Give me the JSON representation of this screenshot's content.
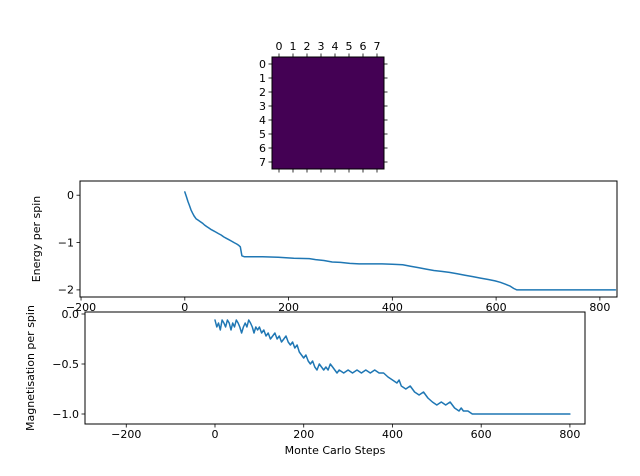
{
  "figure": {
    "background": "#ffffff",
    "line_color": "#1f77b4",
    "spine_color": "#000000",
    "heatmap_cell_color": "#440154"
  },
  "chart_data": [
    {
      "type": "heatmap",
      "name": "lattice",
      "title": "",
      "rows": 8,
      "cols": 8,
      "colormap": "viridis",
      "cell_color": "#440154",
      "x_tick_labels": [
        "0",
        "1",
        "2",
        "3",
        "4",
        "5",
        "6",
        "7"
      ],
      "y_tick_labels": [
        "0",
        "1",
        "2",
        "3",
        "4",
        "5",
        "6",
        "7"
      ],
      "values": [
        [
          -1,
          -1,
          -1,
          -1,
          -1,
          -1,
          -1,
          -1
        ],
        [
          -1,
          -1,
          -1,
          -1,
          -1,
          -1,
          -1,
          -1
        ],
        [
          -1,
          -1,
          -1,
          -1,
          -1,
          -1,
          -1,
          -1
        ],
        [
          -1,
          -1,
          -1,
          -1,
          -1,
          -1,
          -1,
          -1
        ],
        [
          -1,
          -1,
          -1,
          -1,
          -1,
          -1,
          -1,
          -1
        ],
        [
          -1,
          -1,
          -1,
          -1,
          -1,
          -1,
          -1,
          -1
        ],
        [
          -1,
          -1,
          -1,
          -1,
          -1,
          -1,
          -1,
          -1
        ],
        [
          -1,
          -1,
          -1,
          -1,
          -1,
          -1,
          -1,
          -1
        ]
      ]
    },
    {
      "type": "line",
      "name": "energy",
      "title": "",
      "xlabel": "",
      "ylabel": "Energy per spin",
      "grid": false,
      "xlim": [
        -202,
        833
      ],
      "ylim": [
        -2.15,
        0.3
      ],
      "x_ticks": [
        -200,
        0,
        200,
        400,
        600,
        800
      ],
      "x_tick_labels": [
        "−200",
        "0",
        "200",
        "400",
        "600",
        "800"
      ],
      "y_ticks": [
        0,
        -1,
        -2
      ],
      "y_tick_labels": [
        "0",
        "−1",
        "−2"
      ],
      "series": [
        {
          "name": "energy per spin",
          "color": "#1f77b4",
          "points": [
            [
              0,
              0.07
            ],
            [
              3,
              -0.03
            ],
            [
              6,
              -0.13
            ],
            [
              9,
              -0.22
            ],
            [
              12,
              -0.31
            ],
            [
              15,
              -0.38
            ],
            [
              18,
              -0.44
            ],
            [
              22,
              -0.5
            ],
            [
              26,
              -0.53
            ],
            [
              30,
              -0.56
            ],
            [
              34,
              -0.59
            ],
            [
              38,
              -0.63
            ],
            [
              42,
              -0.66
            ],
            [
              46,
              -0.69
            ],
            [
              50,
              -0.72
            ],
            [
              55,
              -0.75
            ],
            [
              60,
              -0.78
            ],
            [
              65,
              -0.81
            ],
            [
              70,
              -0.84
            ],
            [
              75,
              -0.88
            ],
            [
              80,
              -0.91
            ],
            [
              85,
              -0.94
            ],
            [
              90,
              -0.97
            ],
            [
              95,
              -1.0
            ],
            [
              100,
              -1.03
            ],
            [
              104,
              -1.06
            ],
            [
              107,
              -1.09
            ],
            [
              110,
              -1.28
            ],
            [
              115,
              -1.3
            ],
            [
              150,
              -1.3
            ],
            [
              180,
              -1.31
            ],
            [
              210,
              -1.33
            ],
            [
              240,
              -1.34
            ],
            [
              252,
              -1.36
            ],
            [
              268,
              -1.38
            ],
            [
              284,
              -1.41
            ],
            [
              300,
              -1.42
            ],
            [
              318,
              -1.44
            ],
            [
              336,
              -1.45
            ],
            [
              380,
              -1.45
            ],
            [
              400,
              -1.46
            ],
            [
              420,
              -1.47
            ],
            [
              435,
              -1.5
            ],
            [
              450,
              -1.53
            ],
            [
              465,
              -1.56
            ],
            [
              480,
              -1.59
            ],
            [
              495,
              -1.61
            ],
            [
              510,
              -1.63
            ],
            [
              525,
              -1.66
            ],
            [
              540,
              -1.69
            ],
            [
              555,
              -1.72
            ],
            [
              570,
              -1.75
            ],
            [
              585,
              -1.78
            ],
            [
              598,
              -1.81
            ],
            [
              608,
              -1.84
            ],
            [
              618,
              -1.88
            ],
            [
              627,
              -1.92
            ],
            [
              634,
              -1.97
            ],
            [
              640,
              -2.0
            ],
            [
              700,
              -2.0
            ],
            [
              770,
              -2.0
            ],
            [
              830,
              -2.0
            ]
          ]
        }
      ]
    },
    {
      "type": "line",
      "name": "magnetisation",
      "title": "",
      "xlabel": "Monte Carlo Steps",
      "ylabel": "Magnetisation per spin",
      "grid": false,
      "xlim": [
        -293,
        834
      ],
      "ylim": [
        -1.1,
        0.02
      ],
      "x_ticks": [
        -200,
        0,
        200,
        400,
        600,
        800
      ],
      "x_tick_labels": [
        "−200",
        "0",
        "200",
        "400",
        "600",
        "800"
      ],
      "y_ticks": [
        0,
        -0.5,
        -1
      ],
      "y_tick_labels": [
        "0.0",
        "−0.5",
        "−1.0"
      ],
      "series": [
        {
          "name": "magnetisation per spin",
          "color": "#1f77b4",
          "points": [
            [
              0,
              -0.06
            ],
            [
              4,
              -0.13
            ],
            [
              8,
              -0.09
            ],
            [
              12,
              -0.16
            ],
            [
              16,
              -0.06
            ],
            [
              20,
              -0.09
            ],
            [
              24,
              -0.13
            ],
            [
              28,
              -0.06
            ],
            [
              32,
              -0.09
            ],
            [
              36,
              -0.16
            ],
            [
              40,
              -0.09
            ],
            [
              44,
              -0.13
            ],
            [
              48,
              -0.06
            ],
            [
              52,
              -0.09
            ],
            [
              56,
              -0.13
            ],
            [
              60,
              -0.19
            ],
            [
              64,
              -0.13
            ],
            [
              68,
              -0.09
            ],
            [
              72,
              -0.13
            ],
            [
              76,
              -0.06
            ],
            [
              80,
              -0.09
            ],
            [
              84,
              -0.13
            ],
            [
              88,
              -0.19
            ],
            [
              92,
              -0.13
            ],
            [
              96,
              -0.16
            ],
            [
              100,
              -0.13
            ],
            [
              105,
              -0.19
            ],
            [
              110,
              -0.16
            ],
            [
              115,
              -0.22
            ],
            [
              120,
              -0.19
            ],
            [
              125,
              -0.25
            ],
            [
              130,
              -0.22
            ],
            [
              135,
              -0.19
            ],
            [
              140,
              -0.25
            ],
            [
              145,
              -0.22
            ],
            [
              150,
              -0.28
            ],
            [
              155,
              -0.25
            ],
            [
              160,
              -0.22
            ],
            [
              165,
              -0.28
            ],
            [
              170,
              -0.31
            ],
            [
              175,
              -0.28
            ],
            [
              180,
              -0.34
            ],
            [
              185,
              -0.31
            ],
            [
              190,
              -0.38
            ],
            [
              195,
              -0.41
            ],
            [
              200,
              -0.44
            ],
            [
              205,
              -0.41
            ],
            [
              210,
              -0.47
            ],
            [
              215,
              -0.5
            ],
            [
              220,
              -0.47
            ],
            [
              225,
              -0.53
            ],
            [
              230,
              -0.56
            ],
            [
              235,
              -0.5
            ],
            [
              240,
              -0.53
            ],
            [
              245,
              -0.56
            ],
            [
              250,
              -0.53
            ],
            [
              255,
              -0.56
            ],
            [
              260,
              -0.5
            ],
            [
              265,
              -0.53
            ],
            [
              270,
              -0.56
            ],
            [
              275,
              -0.59
            ],
            [
              280,
              -0.56
            ],
            [
              290,
              -0.59
            ],
            [
              300,
              -0.56
            ],
            [
              310,
              -0.59
            ],
            [
              320,
              -0.56
            ],
            [
              330,
              -0.59
            ],
            [
              340,
              -0.56
            ],
            [
              350,
              -0.59
            ],
            [
              360,
              -0.56
            ],
            [
              370,
              -0.59
            ],
            [
              380,
              -0.59
            ],
            [
              390,
              -0.63
            ],
            [
              400,
              -0.66
            ],
            [
              410,
              -0.69
            ],
            [
              415,
              -0.66
            ],
            [
              420,
              -0.72
            ],
            [
              430,
              -0.75
            ],
            [
              440,
              -0.72
            ],
            [
              450,
              -0.78
            ],
            [
              460,
              -0.81
            ],
            [
              470,
              -0.78
            ],
            [
              480,
              -0.84
            ],
            [
              490,
              -0.88
            ],
            [
              500,
              -0.91
            ],
            [
              510,
              -0.88
            ],
            [
              520,
              -0.91
            ],
            [
              530,
              -0.88
            ],
            [
              540,
              -0.94
            ],
            [
              550,
              -0.97
            ],
            [
              555,
              -0.94
            ],
            [
              560,
              -0.97
            ],
            [
              570,
              -0.97
            ],
            [
              580,
              -1.0
            ],
            [
              620,
              -1.0
            ],
            [
              680,
              -1.0
            ],
            [
              740,
              -1.0
            ],
            [
              800,
              -1.0
            ]
          ]
        }
      ]
    }
  ]
}
